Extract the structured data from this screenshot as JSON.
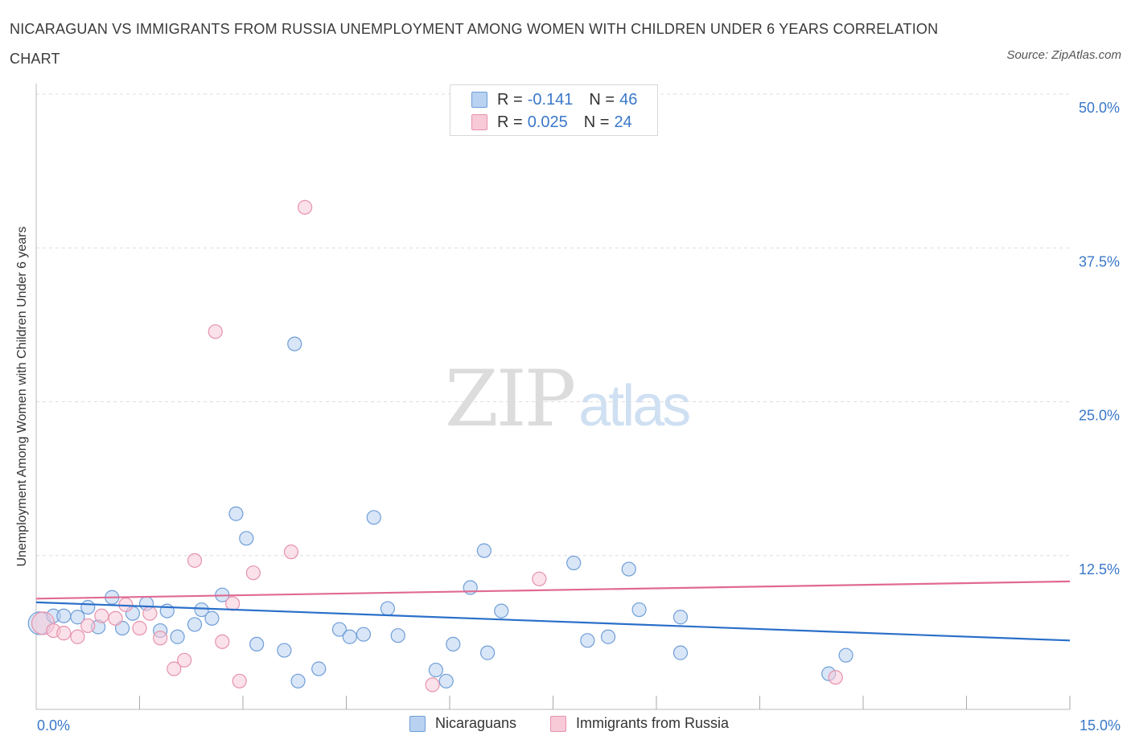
{
  "chart_data": {
    "type": "scatter",
    "title": "NICARAGUAN VS IMMIGRANTS FROM RUSSIA UNEMPLOYMENT AMONG WOMEN WITH CHILDREN UNDER 6 YEARS CORRELATION CHART",
    "source": "Source: ZipAtlas.com",
    "xlabel": "",
    "ylabel": "Unemployment Among Women with Children Under 6 years",
    "xlim": [
      0,
      15
    ],
    "ylim": [
      0,
      50
    ],
    "x_tick_labels": {
      "min": "0.0%",
      "max": "15.0%"
    },
    "y_ticks": [
      {
        "value": 50.0,
        "label": "50.0%"
      },
      {
        "value": 37.5,
        "label": "37.5%"
      },
      {
        "value": 25.0,
        "label": "25.0%"
      },
      {
        "value": 12.5,
        "label": "12.5%"
      }
    ],
    "x_minor_ticks": [
      1.5,
      3.0,
      4.5,
      6.0,
      7.5,
      9.0,
      10.5,
      12.0,
      13.5,
      15.0
    ],
    "grid": true,
    "legend_position": "top-center",
    "series": [
      {
        "name": "Nicaraguans",
        "color": "#6f9ed8",
        "fill": "#b9d2f1",
        "line_color": "#2a6fc9",
        "R": "-0.141",
        "N": "46",
        "trend": {
          "x0": 0.0,
          "y0": 8.7,
          "x1": 15.0,
          "y1": 5.6
        },
        "points": [
          {
            "x": 0.05,
            "y": 7.0,
            "big": true
          },
          {
            "x": 0.25,
            "y": 7.6
          },
          {
            "x": 0.4,
            "y": 7.6
          },
          {
            "x": 0.6,
            "y": 7.5
          },
          {
            "x": 0.75,
            "y": 8.3
          },
          {
            "x": 0.9,
            "y": 6.7
          },
          {
            "x": 1.1,
            "y": 9.1
          },
          {
            "x": 1.25,
            "y": 6.6
          },
          {
            "x": 1.4,
            "y": 7.8
          },
          {
            "x": 1.6,
            "y": 8.6
          },
          {
            "x": 1.8,
            "y": 6.4
          },
          {
            "x": 1.9,
            "y": 8.0
          },
          {
            "x": 2.05,
            "y": 5.9
          },
          {
            "x": 2.3,
            "y": 6.9
          },
          {
            "x": 2.4,
            "y": 8.1
          },
          {
            "x": 2.55,
            "y": 7.4
          },
          {
            "x": 2.7,
            "y": 9.3
          },
          {
            "x": 2.9,
            "y": 15.9
          },
          {
            "x": 3.05,
            "y": 13.9
          },
          {
            "x": 3.2,
            "y": 5.3
          },
          {
            "x": 3.6,
            "y": 4.8
          },
          {
            "x": 3.75,
            "y": 29.7
          },
          {
            "x": 3.8,
            "y": 2.3
          },
          {
            "x": 4.1,
            "y": 3.3
          },
          {
            "x": 4.4,
            "y": 6.5
          },
          {
            "x": 4.55,
            "y": 5.9
          },
          {
            "x": 4.75,
            "y": 6.1
          },
          {
            "x": 4.9,
            "y": 15.6
          },
          {
            "x": 5.1,
            "y": 8.2
          },
          {
            "x": 5.25,
            "y": 6.0
          },
          {
            "x": 5.8,
            "y": 3.2
          },
          {
            "x": 5.95,
            "y": 2.3
          },
          {
            "x": 6.05,
            "y": 5.3
          },
          {
            "x": 6.3,
            "y": 9.9
          },
          {
            "x": 6.55,
            "y": 4.6
          },
          {
            "x": 6.5,
            "y": 12.9
          },
          {
            "x": 6.75,
            "y": 8.0
          },
          {
            "x": 7.8,
            "y": 11.9
          },
          {
            "x": 8.0,
            "y": 5.6
          },
          {
            "x": 8.3,
            "y": 5.9
          },
          {
            "x": 8.6,
            "y": 11.4
          },
          {
            "x": 8.75,
            "y": 8.1
          },
          {
            "x": 9.35,
            "y": 4.6
          },
          {
            "x": 9.35,
            "y": 7.5
          },
          {
            "x": 11.5,
            "y": 2.9
          },
          {
            "x": 11.75,
            "y": 4.4
          }
        ]
      },
      {
        "name": "Immigrants from Russia",
        "color": "#e693ad",
        "fill": "#f8c9d7",
        "line_color": "#e06a93",
        "R": "0.025",
        "N": "24",
        "trend": {
          "x0": 0.0,
          "y0": 9.0,
          "x1": 15.0,
          "y1": 10.4
        },
        "points": [
          {
            "x": 0.1,
            "y": 7.0,
            "big": true
          },
          {
            "x": 0.25,
            "y": 6.4
          },
          {
            "x": 0.4,
            "y": 6.2
          },
          {
            "x": 0.6,
            "y": 5.9
          },
          {
            "x": 0.75,
            "y": 6.8
          },
          {
            "x": 0.95,
            "y": 7.6
          },
          {
            "x": 1.15,
            "y": 7.4
          },
          {
            "x": 1.3,
            "y": 8.5
          },
          {
            "x": 1.5,
            "y": 6.6
          },
          {
            "x": 1.65,
            "y": 7.8
          },
          {
            "x": 1.8,
            "y": 5.8
          },
          {
            "x": 2.0,
            "y": 3.3
          },
          {
            "x": 2.15,
            "y": 4.0
          },
          {
            "x": 2.3,
            "y": 12.1
          },
          {
            "x": 2.6,
            "y": 30.7
          },
          {
            "x": 2.7,
            "y": 5.5
          },
          {
            "x": 2.85,
            "y": 8.6
          },
          {
            "x": 2.95,
            "y": 2.3
          },
          {
            "x": 3.15,
            "y": 11.1
          },
          {
            "x": 3.7,
            "y": 12.8
          },
          {
            "x": 3.9,
            "y": 40.8
          },
          {
            "x": 5.75,
            "y": 2.0
          },
          {
            "x": 7.3,
            "y": 10.6
          },
          {
            "x": 11.6,
            "y": 2.6
          }
        ]
      }
    ]
  },
  "watermark": {
    "zip": "ZIP",
    "atlas": "atlas"
  }
}
